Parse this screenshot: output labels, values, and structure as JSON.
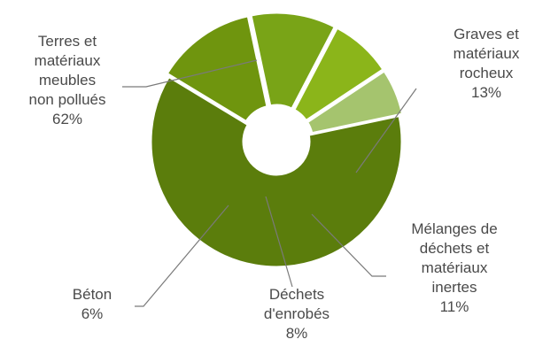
{
  "chart_data": {
    "type": "pie",
    "title": "",
    "slices": [
      {
        "name": "Terres et matériaux meubles non pollués",
        "label_lines": [
          "Terres et",
          "matériaux",
          "meubles",
          "non pollués"
        ],
        "value": 62,
        "pct_label": "62%",
        "color": "#5b7d0c"
      },
      {
        "name": "Graves et matériaux rocheux",
        "label_lines": [
          "Graves et",
          "matériaux",
          "rocheux"
        ],
        "value": 13,
        "pct_label": "13%",
        "color": "#6f950e"
      },
      {
        "name": "Mélanges de déchets et matériaux inertes",
        "label_lines": [
          "Mélanges de",
          "déchets et",
          "matériaux",
          "inertes"
        ],
        "value": 11,
        "pct_label": "11%",
        "color": "#79a417"
      },
      {
        "name": "Déchets d'enrobés",
        "label_lines": [
          "Déchets",
          "d'enrobés"
        ],
        "value": 8,
        "pct_label": "8%",
        "color": "#8bb51a"
      },
      {
        "name": "Béton",
        "label_lines": [
          "Béton"
        ],
        "value": 6,
        "pct_label": "6%",
        "color": "#a5c46e"
      }
    ]
  }
}
